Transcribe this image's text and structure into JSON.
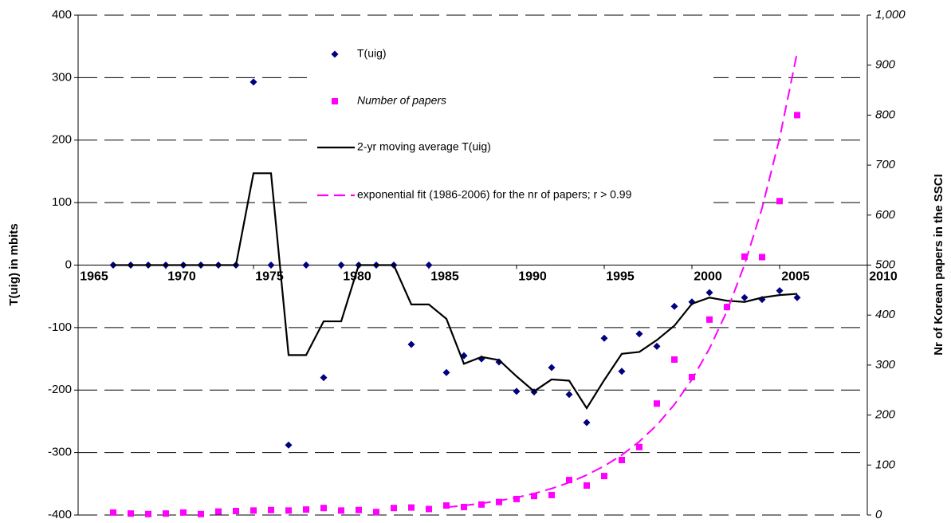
{
  "chart_data": {
    "type": "scatter",
    "y_label": "T(uig) in mbits",
    "y2_label": "Nr of Korean papers in the SSCI",
    "xlim": [
      1965,
      2010
    ],
    "xticks": [
      1965,
      1970,
      1975,
      1980,
      1985,
      1990,
      1995,
      2000,
      2005,
      2010
    ],
    "ylim": [
      -400,
      400
    ],
    "yticks": [
      -400,
      -300,
      -200,
      -100,
      0,
      100,
      200,
      300,
      400
    ],
    "y2lim": [
      0,
      1000
    ],
    "y2ticks": [
      0,
      100,
      200,
      300,
      400,
      500,
      600,
      700,
      800,
      900,
      {
        "value": 1000,
        "label": "1,000"
      }
    ],
    "grid": true,
    "series": [
      {
        "name": "T(uig)",
        "color": "#000080",
        "style": "diamond",
        "x": [
          1967,
          1968,
          1969,
          1970,
          1971,
          1972,
          1973,
          1974,
          1975,
          1976,
          1977,
          1978,
          1979,
          1980,
          1981,
          1982,
          1983,
          1984,
          1985,
          1986,
          1987,
          1988,
          1989,
          1990,
          1991,
          1992,
          1993,
          1994,
          1995,
          1996,
          1997,
          1998,
          1999,
          2000,
          2001,
          2002,
          2003,
          2004,
          2005,
          2006
        ],
        "values": [
          0,
          0,
          0,
          0,
          0,
          0,
          0,
          0,
          293,
          0,
          -288,
          0,
          -180,
          0,
          0,
          0,
          0,
          -127,
          0,
          -172,
          -145,
          -150,
          -155,
          -202,
          -203,
          -164,
          -207,
          -252,
          -117,
          -170,
          -110,
          -130,
          -66,
          -59,
          -44,
          -67,
          -52,
          -55,
          -41,
          -52
        ]
      },
      {
        "name": "Number of papers",
        "color": "#ff00ff",
        "style": "square",
        "axis": "y2",
        "x": [
          1967,
          1968,
          1969,
          1970,
          1971,
          1972,
          1973,
          1974,
          1975,
          1976,
          1977,
          1978,
          1979,
          1980,
          1981,
          1982,
          1983,
          1984,
          1985,
          1986,
          1987,
          1988,
          1989,
          1990,
          1991,
          1992,
          1993,
          1994,
          1995,
          1996,
          1997,
          1998,
          1999,
          2000,
          2001,
          2002,
          2003,
          2004,
          2005,
          2006
        ],
        "values": [
          5,
          3,
          2,
          3,
          5,
          2,
          7,
          8,
          9,
          10,
          9,
          11,
          14,
          9,
          10,
          6,
          14,
          15,
          12,
          19,
          16,
          21,
          26,
          32,
          38,
          40,
          70,
          59,
          78,
          110,
          136,
          223,
          311,
          276,
          391,
          416,
          517,
          516,
          628,
          800
        ]
      },
      {
        "name": "2-yr moving average T(uig)",
        "color": "#000000",
        "style": "line",
        "x": [
          1967,
          1968,
          1969,
          1970,
          1971,
          1972,
          1973,
          1974,
          1975,
          1976,
          1977,
          1978,
          1979,
          1980,
          1981,
          1982,
          1983,
          1984,
          1985,
          1986,
          1987,
          1988,
          1989,
          1990,
          1991,
          1992,
          1993,
          1994,
          1995,
          1996,
          1997,
          1998,
          1999,
          2000,
          2001,
          2002,
          2003,
          2004,
          2005,
          2006
        ],
        "values": [
          0,
          0,
          0,
          0,
          0,
          0,
          0,
          0,
          147,
          147,
          -144,
          -144,
          -90,
          -90,
          0,
          0,
          0,
          -63,
          -63,
          -86,
          -158,
          -147,
          -152,
          -178,
          -202,
          -183,
          -185,
          -229,
          -184,
          -142,
          -139,
          -120,
          -97,
          -62,
          -52,
          -57,
          -59,
          -52,
          -48,
          -46
        ]
      },
      {
        "name": "exponential fit (1986-2006) for the nr of papers; r > 0.99",
        "color": "#ff00ff",
        "style": "dashed",
        "axis": "y2",
        "x": [
          1986,
          1987,
          1988,
          1989,
          1990,
          1991,
          1992,
          1993,
          1994,
          1995,
          1996,
          1997,
          1998,
          1999,
          2000,
          2001,
          2002,
          2003,
          2004,
          2005,
          2006
        ],
        "values": [
          15.5,
          19,
          23.3,
          28.6,
          35,
          43,
          53,
          65,
          80,
          98,
          120,
          147,
          180,
          221,
          271,
          333,
          408,
          501,
          614,
          754,
          925
        ]
      }
    ]
  }
}
